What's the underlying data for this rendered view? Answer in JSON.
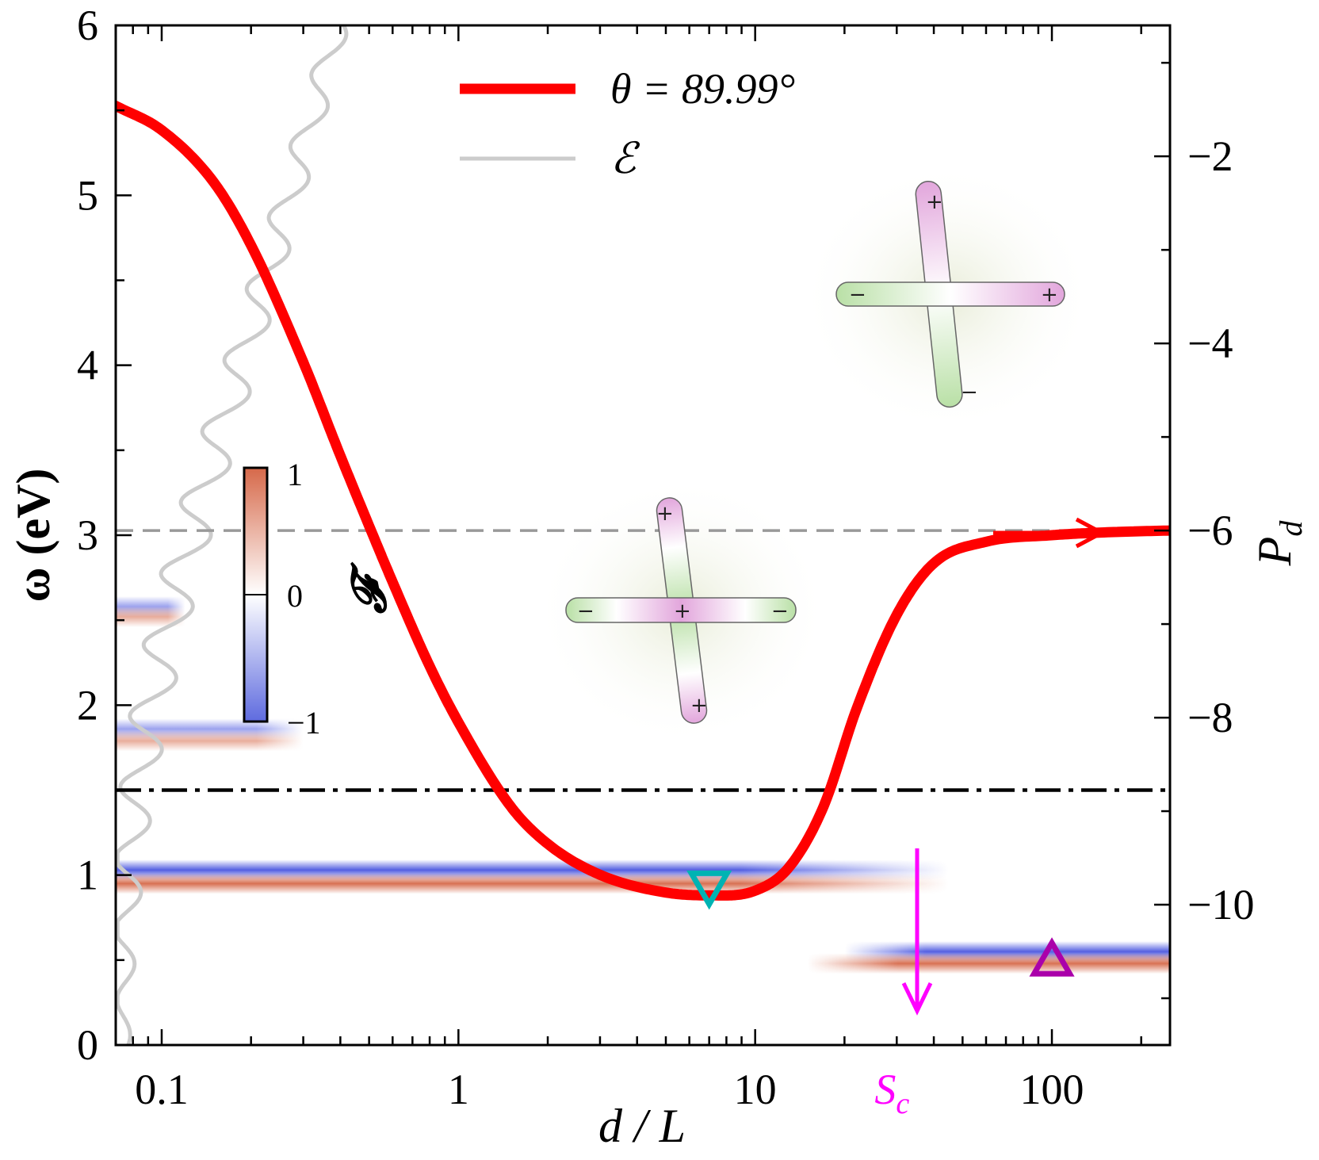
{
  "chart_data": {
    "type": "line",
    "title": "",
    "x_axis": {
      "label": "d / L",
      "scale": "log",
      "range": [
        0.07,
        250
      ],
      "tick_labels": [
        "0.1",
        "1",
        "10",
        "100"
      ],
      "tick_values": [
        0.1,
        1,
        10,
        100
      ],
      "special_tick": {
        "label": "S",
        "subscript": "c",
        "value": 30,
        "color": "#ff00ff"
      }
    },
    "y_left_axis": {
      "label": "ω (eV)",
      "range": [
        0,
        6
      ],
      "tick_labels": [
        "0",
        "1",
        "2",
        "3",
        "4",
        "5",
        "6"
      ],
      "tick_values": [
        0,
        1,
        2,
        3,
        4,
        5,
        6
      ]
    },
    "y_right_axis": {
      "label": "P",
      "label_subscript": "d",
      "range": [
        -11.5,
        -0.6
      ],
      "tick_labels": [
        "−2",
        "−4",
        "−6",
        "−8",
        "−10"
      ],
      "tick_values": [
        -2,
        -4,
        -6,
        -8,
        -10
      ]
    },
    "series": [
      {
        "name": "θ = 89.99°",
        "legend_label": "θ = 89.99°",
        "axis": "right",
        "color": "#ff0000",
        "x": [
          0.07,
          0.1,
          0.15,
          0.2,
          0.3,
          0.4,
          0.5,
          0.6,
          0.8,
          1.0,
          1.5,
          2.0,
          3.0,
          5.0,
          7.0,
          10.0,
          13.0,
          17.0,
          22.0,
          30.0,
          40.0,
          60.0,
          100.0,
          150.0,
          250.0
        ],
        "y": [
          -1.46,
          -1.72,
          -2.28,
          -2.95,
          -4.2,
          -5.2,
          -5.95,
          -6.55,
          -7.45,
          -8.05,
          -8.95,
          -9.35,
          -9.68,
          -9.87,
          -9.9,
          -9.85,
          -9.6,
          -8.95,
          -7.9,
          -6.9,
          -6.35,
          -6.12,
          -6.05,
          -6.02,
          -6.0
        ]
      },
      {
        "name": "ℰ",
        "legend_label": "ℰ",
        "axis": "left",
        "color": "#cccccc",
        "description": "oscillating trace along left edge"
      }
    ],
    "reference_lines": [
      {
        "type": "horizontal",
        "axis": "right",
        "value": -6,
        "style": "dashed",
        "color": "#999999"
      },
      {
        "type": "horizontal",
        "axis": "left",
        "value": 1.5,
        "style": "dash-dot",
        "color": "#000000"
      }
    ],
    "heatmap": {
      "name": "𝓕",
      "colorbar_label": "𝓕",
      "colorbar_ticks": [
        "1",
        "0",
        "−1"
      ],
      "range": [
        -1,
        1
      ],
      "bands": [
        {
          "omega": 1.03,
          "sign": -1,
          "x_start": 0.07,
          "x_end": 45
        },
        {
          "omega": 0.95,
          "sign": 1,
          "x_start": 0.07,
          "x_end": 45
        },
        {
          "omega": 0.55,
          "sign": -1,
          "x_start": 20,
          "x_end": 250
        },
        {
          "omega": 0.48,
          "sign": 1,
          "x_start": 15,
          "x_end": 250
        },
        {
          "omega": 1.86,
          "sign": -1,
          "x_start": 0.07,
          "x_end": 0.3
        },
        {
          "omega": 1.79,
          "sign": 1,
          "x_start": 0.07,
          "x_end": 0.3
        },
        {
          "omega": 2.58,
          "sign": -1,
          "x_start": 0.07,
          "x_end": 0.12
        },
        {
          "omega": 2.52,
          "sign": 1,
          "x_start": 0.07,
          "x_end": 0.12
        }
      ]
    },
    "markers": [
      {
        "shape": "triangle-down",
        "x": 7,
        "y": 0.95,
        "color": "#00b3b3"
      },
      {
        "shape": "triangle-up",
        "x": 100,
        "y": 0.48,
        "color": "#aa00aa"
      }
    ],
    "arrows": [
      {
        "direction": "right",
        "color": "#ff0000",
        "meaning": "red curve uses right axis"
      },
      {
        "direction": "down",
        "color": "#ff00ff",
        "meaning": "S_c transition"
      }
    ],
    "insets": [
      {
        "name": "cross-dimer-symmetric",
        "charges": [
          "+",
          "−",
          "+",
          "−",
          "+"
        ]
      },
      {
        "name": "cross-dimer-antisymmetric",
        "charges": [
          "+",
          "−",
          "+",
          "−"
        ]
      }
    ]
  }
}
